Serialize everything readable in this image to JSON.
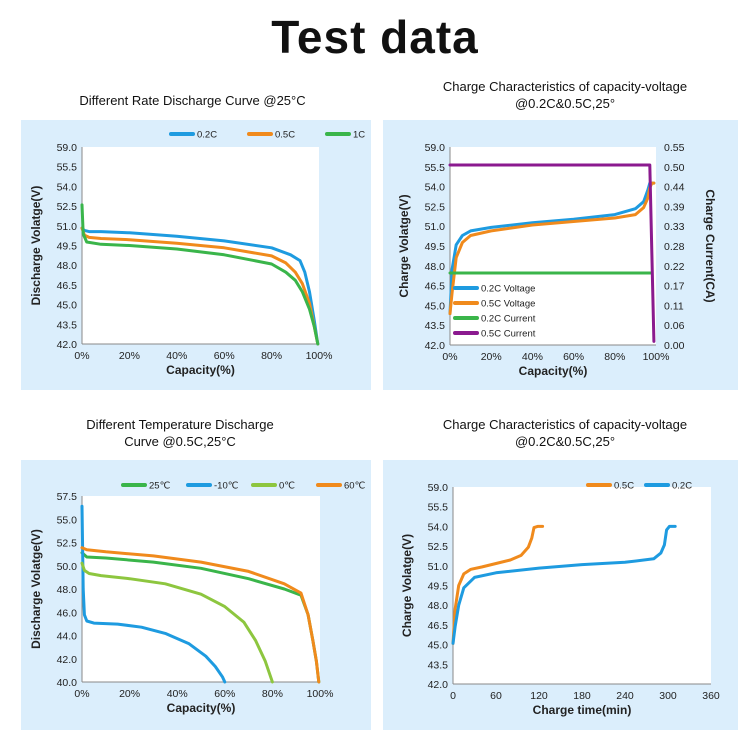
{
  "page": {
    "title": "Test data"
  },
  "chart_data": [
    {
      "id": "c1",
      "type": "line",
      "title": "Different Rate Discharge Curve @25°C",
      "xlabel": "Capacity(%)",
      "ylabel": "Discharge Volatge(V)",
      "xlim": [
        0,
        100
      ],
      "ylim": [
        42,
        59
      ],
      "xticks": [
        "0%",
        "20%",
        "40%",
        "60%",
        "80%",
        "100%"
      ],
      "yticks": [
        "42.0",
        "43.5",
        "45.0",
        "46.5",
        "48.0",
        "49.5",
        "51.0",
        "52.5",
        "54.0",
        "55.5",
        "59.0"
      ],
      "legend": "top-right",
      "colors": {
        "0.2C": "#1e9be0",
        "0.5C": "#f08a1c",
        "1C": "#3ab54a"
      },
      "series": [
        {
          "name": "0.2C",
          "x": [
            0,
            1,
            3,
            8,
            20,
            40,
            60,
            80,
            88,
            92,
            94,
            96,
            98,
            99.5
          ],
          "y": [
            52.0,
            51.8,
            51.7,
            51.7,
            51.6,
            51.3,
            50.9,
            50.3,
            49.7,
            49.2,
            48.2,
            46.5,
            44.0,
            42.0
          ]
        },
        {
          "name": "0.5C",
          "x": [
            0,
            1,
            3,
            8,
            20,
            40,
            60,
            80,
            86,
            90,
            93,
            96,
            98,
            99.5
          ],
          "y": [
            52.0,
            51.4,
            51.2,
            51.1,
            51.0,
            50.7,
            50.3,
            49.6,
            49.0,
            48.2,
            47.2,
            45.5,
            43.5,
            42.0
          ]
        },
        {
          "name": "1C",
          "x": [
            0,
            0.5,
            2,
            8,
            20,
            40,
            60,
            80,
            86,
            90,
            93,
            96,
            98,
            99.5
          ],
          "y": [
            54.0,
            51.5,
            50.8,
            50.6,
            50.5,
            50.2,
            49.7,
            48.9,
            48.2,
            47.5,
            46.5,
            45.0,
            43.5,
            42.0
          ]
        }
      ]
    },
    {
      "id": "c2",
      "type": "line",
      "title": "Charge Characteristics of capacity-voltage @0.2C&0.5C,25°",
      "xlabel": "Capacity(%)",
      "ylabel": "Charge Volatge(V)",
      "y2label": "Charge Current(CA)",
      "xlim": [
        0,
        100
      ],
      "ylim": [
        42,
        59
      ],
      "y2lim": [
        0,
        0.55
      ],
      "xticks": [
        "0%",
        "20%",
        "40%",
        "60%",
        "80%",
        "100%"
      ],
      "yticks": [
        "42.0",
        "43.5",
        "45.0",
        "46.5",
        "48.0",
        "49.5",
        "51.0",
        "52.5",
        "54.0",
        "55.5",
        "59.0"
      ],
      "y2ticks": [
        "0.00",
        "0.06",
        "0.11",
        "0.17",
        "0.22",
        "0.28",
        "0.33",
        "0.39",
        "0.44",
        "0.50",
        "0.55"
      ],
      "legend": "bottom-left",
      "colors": {
        "0.2C Voltage": "#1e9be0",
        "0.5C Voltage": "#f08a1c",
        "0.2C Current": "#3ab54a",
        "0.5C Current": "#8b1a8f"
      },
      "series": [
        {
          "name": "0.2C Voltage",
          "x": [
            0,
            1,
            3,
            6,
            10,
            20,
            40,
            60,
            80,
            90,
            94,
            96,
            97,
            98,
            99
          ],
          "y": [
            44.7,
            48.5,
            50.6,
            51.4,
            51.8,
            52.1,
            52.5,
            52.8,
            53.2,
            53.7,
            54.3,
            55.3,
            55.9,
            55.9,
            55.9
          ]
        },
        {
          "name": "0.5C Voltage",
          "x": [
            0,
            1,
            3,
            6,
            10,
            20,
            40,
            60,
            80,
            90,
            94,
            96,
            97,
            98,
            99
          ],
          "y": [
            44.7,
            46.5,
            49.5,
            50.8,
            51.4,
            51.8,
            52.3,
            52.6,
            52.9,
            53.2,
            53.8,
            54.6,
            55.5,
            55.9,
            55.9
          ]
        },
        {
          "name": "0.2C Current",
          "axis": "y2",
          "x": [
            0,
            98
          ],
          "y": [
            0.2,
            0.2
          ]
        },
        {
          "name": "0.5C Current",
          "axis": "y2",
          "x": [
            0,
            96,
            97,
            99
          ],
          "y": [
            0.5,
            0.5,
            0.5,
            0.01
          ]
        }
      ]
    },
    {
      "id": "c3",
      "type": "line",
      "title": "Different Temperature Discharge Curve @0.5C,25°C",
      "xlabel": "Capacity(%)",
      "ylabel": "Discharge Volatge(V)",
      "xlim": [
        0,
        100
      ],
      "ylim": [
        40,
        58
      ],
      "xticks": [
        "0%",
        "20%",
        "40%",
        "60%",
        "80%",
        "100%"
      ],
      "yticks": [
        "40.0",
        "42.0",
        "44.0",
        "46.0",
        "48.0",
        "50.0",
        "52.5",
        "55.0",
        "57.5"
      ],
      "legend": "top",
      "colors": {
        "25℃": "#3ab54a",
        "-10℃": "#1e9be0",
        "0℃": "#8dc63f",
        "60℃": "#f08a1c"
      },
      "series": [
        {
          "name": "25℃",
          "x": [
            0,
            2,
            10,
            30,
            50,
            70,
            85,
            92,
            95,
            97,
            98.5,
            99.5
          ],
          "y": [
            52.5,
            52.1,
            52.0,
            51.6,
            51.0,
            50.0,
            49.0,
            48.4,
            46.5,
            44.0,
            42.0,
            40.0
          ]
        },
        {
          "name": "-10℃",
          "x": [
            0,
            0.5,
            1,
            2,
            5,
            15,
            25,
            35,
            45,
            52,
            56,
            59,
            60
          ],
          "y": [
            57.0,
            49.0,
            46.5,
            45.9,
            45.7,
            45.6,
            45.3,
            44.7,
            43.7,
            42.5,
            41.5,
            40.5,
            40.0
          ]
        },
        {
          "name": "0℃",
          "x": [
            0,
            1,
            3,
            8,
            20,
            35,
            50,
            60,
            68,
            73,
            77,
            80
          ],
          "y": [
            51.5,
            50.8,
            50.5,
            50.3,
            50.0,
            49.5,
            48.5,
            47.3,
            45.8,
            44.0,
            42.0,
            40.0
          ]
        },
        {
          "name": "60℃",
          "x": [
            0,
            2,
            10,
            30,
            50,
            70,
            85,
            92,
            95,
            97,
            98.5,
            99.5
          ],
          "y": [
            53.0,
            52.8,
            52.6,
            52.2,
            51.6,
            50.7,
            49.5,
            48.6,
            46.5,
            44.0,
            42.0,
            40.0
          ]
        }
      ]
    },
    {
      "id": "c4",
      "type": "line",
      "title": "Charge Characteristics of capacity-voltage @0.2C&0.5C,25°",
      "xlabel": "Charge time(min)",
      "ylabel": "Charge Volatge(V)",
      "xlim": [
        0,
        360
      ],
      "ylim": [
        42,
        59
      ],
      "xticks": [
        "0",
        "60",
        "120",
        "180",
        "240",
        "300",
        "360"
      ],
      "yticks": [
        "42.0",
        "43.5",
        "45.0",
        "46.5",
        "48.0",
        "49.5",
        "51.0",
        "52.5",
        "54.0",
        "55.5",
        "59.0"
      ],
      "legend": "top-right",
      "colors": {
        "0.5C": "#f08a1c",
        "0.2C": "#1e9be0"
      },
      "series": [
        {
          "name": "0.5C",
          "x": [
            0,
            3,
            8,
            15,
            25,
            40,
            60,
            80,
            95,
            105,
            110,
            113,
            118,
            125
          ],
          "y": [
            45.5,
            48.5,
            50.5,
            51.5,
            51.9,
            52.1,
            52.4,
            52.7,
            53.1,
            53.8,
            54.6,
            55.5,
            55.6,
            55.6
          ]
        },
        {
          "name": "0.2C",
          "x": [
            0,
            3,
            8,
            15,
            30,
            60,
            120,
            180,
            240,
            280,
            290,
            295,
            298,
            302,
            310
          ],
          "y": [
            45.5,
            47.0,
            48.8,
            50.3,
            51.2,
            51.6,
            52.0,
            52.3,
            52.5,
            52.8,
            53.3,
            54.0,
            55.3,
            55.6,
            55.6
          ]
        }
      ]
    }
  ]
}
